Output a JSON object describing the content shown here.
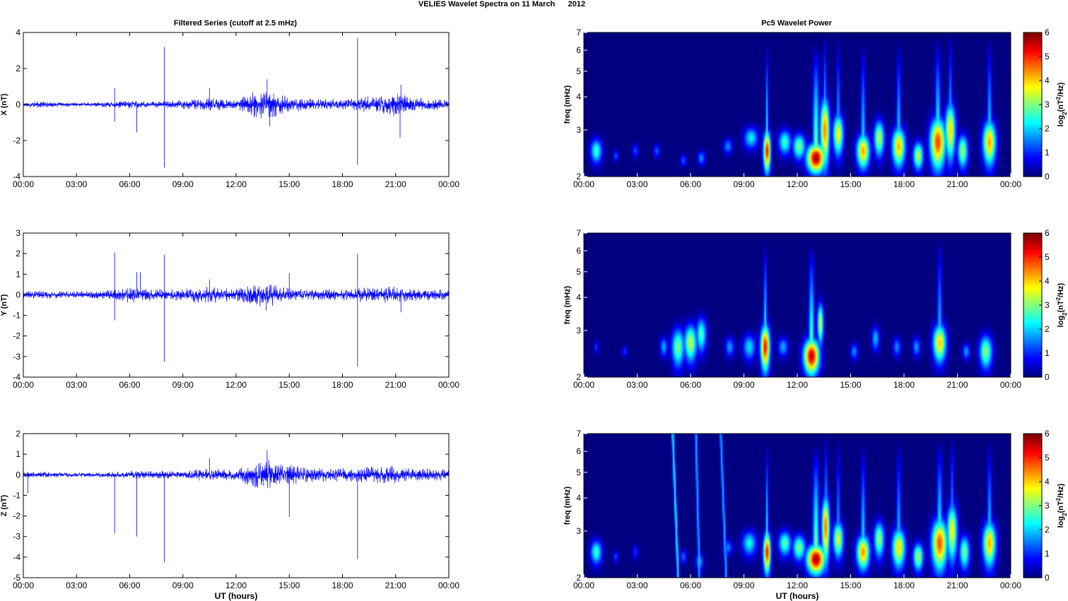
{
  "figure_title": "VELIES Wavelet Spectra on 11 March      2012",
  "left_title": "Filtered Series (cutoff at 2.5 mHz)",
  "right_title": "Pc5 Wavelet Power",
  "x_label": "UT (hours)",
  "colorbar_label": "log2(nT^2/Hz)",
  "colors": {
    "series_line": "#0000ff",
    "axis": "#000000",
    "background": "#00008f",
    "colormap": "jet"
  },
  "chart_data": [
    {
      "type": "line",
      "name": "X component filtered series",
      "title": "Filtered Series (cutoff at 2.5 mHz)",
      "ylabel": "X (nT)",
      "xlabel": "",
      "xlim": [
        0,
        24
      ],
      "ylim": [
        -4,
        4
      ],
      "x_tick_labels": [
        "00:00",
        "03:00",
        "06:00",
        "09:00",
        "12:00",
        "15:00",
        "18:00",
        "21:00",
        "00:00"
      ],
      "y_ticks": [
        -4,
        -2,
        0,
        2,
        4
      ],
      "envelope_hours": [
        0,
        1,
        2,
        3,
        4,
        5,
        6,
        7,
        8,
        9,
        10,
        11,
        12,
        13,
        14,
        15,
        16,
        17,
        18,
        19,
        20,
        21,
        22,
        23,
        24
      ],
      "envelope_amplitude": [
        0.15,
        0.2,
        0.12,
        0.12,
        0.12,
        0.18,
        0.25,
        0.2,
        0.2,
        0.25,
        0.35,
        0.4,
        0.25,
        0.8,
        0.9,
        0.45,
        0.35,
        0.35,
        0.3,
        0.4,
        0.6,
        0.8,
        0.4,
        0.35,
        0.25
      ],
      "spikes": [
        {
          "x": 5.15,
          "y": 0.9
        },
        {
          "x": 5.15,
          "y": -0.95
        },
        {
          "x": 6.4,
          "y": -1.55
        },
        {
          "x": 7.95,
          "y": 3.2
        },
        {
          "x": 7.95,
          "y": -3.5
        },
        {
          "x": 10.5,
          "y": 0.9
        },
        {
          "x": 13.75,
          "y": 1.4
        },
        {
          "x": 13.9,
          "y": -1.2
        },
        {
          "x": 18.85,
          "y": 3.7
        },
        {
          "x": 18.85,
          "y": -3.35
        },
        {
          "x": 21.3,
          "y": 1.1
        },
        {
          "x": 21.25,
          "y": -1.85
        }
      ]
    },
    {
      "type": "line",
      "name": "Y component filtered series",
      "ylabel": "Y (nT)",
      "xlabel": "",
      "xlim": [
        0,
        24
      ],
      "ylim": [
        -4,
        3
      ],
      "x_tick_labels": [
        "00:00",
        "03:00",
        "06:00",
        "09:00",
        "12:00",
        "15:00",
        "18:00",
        "21:00",
        "00:00"
      ],
      "y_ticks": [
        -4,
        -3,
        -2,
        -1,
        0,
        1,
        2,
        3
      ],
      "envelope_hours": [
        0,
        1,
        2,
        3,
        4,
        5,
        6,
        7,
        8,
        9,
        10,
        11,
        12,
        13,
        14,
        15,
        16,
        17,
        18,
        19,
        20,
        21,
        22,
        23,
        24
      ],
      "envelope_amplitude": [
        0.2,
        0.2,
        0.18,
        0.18,
        0.2,
        0.3,
        0.4,
        0.35,
        0.3,
        0.3,
        0.45,
        0.4,
        0.3,
        0.6,
        0.55,
        0.35,
        0.3,
        0.3,
        0.3,
        0.35,
        0.45,
        0.45,
        0.3,
        0.3,
        0.25
      ],
      "spikes": [
        {
          "x": 5.15,
          "y": 2.05
        },
        {
          "x": 5.15,
          "y": -1.25
        },
        {
          "x": 6.4,
          "y": 1.1
        },
        {
          "x": 6.6,
          "y": 1.1
        },
        {
          "x": 7.95,
          "y": 1.95
        },
        {
          "x": 7.95,
          "y": -3.25
        },
        {
          "x": 10.5,
          "y": 0.75
        },
        {
          "x": 13.7,
          "y": -0.75
        },
        {
          "x": 15.0,
          "y": 1.05
        },
        {
          "x": 18.85,
          "y": 2.0
        },
        {
          "x": 18.85,
          "y": -3.5
        },
        {
          "x": 21.3,
          "y": -0.85
        }
      ]
    },
    {
      "type": "line",
      "name": "Z component filtered series",
      "ylabel": "Z (nT)",
      "xlabel": "UT (hours)",
      "xlim": [
        0,
        24
      ],
      "ylim": [
        -5,
        2
      ],
      "x_tick_labels": [
        "00:00",
        "03:00",
        "06:00",
        "09:00",
        "12:00",
        "15:00",
        "18:00",
        "21:00",
        "00:00"
      ],
      "y_ticks": [
        -5,
        -4,
        -3,
        -2,
        -1,
        0,
        1,
        2
      ],
      "envelope_hours": [
        0,
        1,
        2,
        3,
        4,
        5,
        6,
        7,
        8,
        9,
        10,
        11,
        12,
        13,
        14,
        15,
        16,
        17,
        18,
        19,
        20,
        21,
        22,
        23,
        24
      ],
      "envelope_amplitude": [
        0.15,
        0.15,
        0.12,
        0.12,
        0.12,
        0.15,
        0.2,
        0.2,
        0.2,
        0.2,
        0.3,
        0.3,
        0.25,
        0.7,
        0.75,
        0.5,
        0.4,
        0.35,
        0.35,
        0.4,
        0.45,
        0.45,
        0.35,
        0.35,
        0.25
      ],
      "spikes": [
        {
          "x": 0.25,
          "y": -0.9
        },
        {
          "x": 5.15,
          "y": -2.85
        },
        {
          "x": 6.4,
          "y": -3.0
        },
        {
          "x": 7.95,
          "y": -4.25
        },
        {
          "x": 10.5,
          "y": 0.8
        },
        {
          "x": 13.75,
          "y": 1.2
        },
        {
          "x": 15.0,
          "y": -2.05
        },
        {
          "x": 18.85,
          "y": -4.1
        }
      ]
    },
    {
      "type": "heatmap",
      "name": "X wavelet power",
      "title": "Pc5 Wavelet Power",
      "ylabel": "freq (mHz)",
      "xlabel": "",
      "xlim": [
        0,
        24
      ],
      "ylim": [
        2,
        7
      ],
      "y_scale": "log",
      "y_ticks": [
        2,
        3,
        4,
        5,
        6,
        7
      ],
      "x_tick_labels": [
        "00:00",
        "03:00",
        "06:00",
        "09:00",
        "12:00",
        "15:00",
        "18:00",
        "21:00",
        "00:00"
      ],
      "colorbar": {
        "ticks": [
          0,
          1,
          2,
          3,
          4,
          5,
          6
        ],
        "label": "log2(nT^2/Hz)",
        "cmap": "jet"
      },
      "blobs": [
        {
          "t": 0.7,
          "f": 2.5,
          "dt": 0.22,
          "df": 0.18,
          "p": 2.6
        },
        {
          "t": 1.8,
          "f": 2.4,
          "dt": 0.1,
          "df": 0.08,
          "p": 1.3
        },
        {
          "t": 2.9,
          "f": 2.5,
          "dt": 0.12,
          "df": 0.1,
          "p": 1.2
        },
        {
          "t": 4.1,
          "f": 2.5,
          "dt": 0.12,
          "df": 0.1,
          "p": 1.3
        },
        {
          "t": 5.6,
          "f": 2.3,
          "dt": 0.12,
          "df": 0.08,
          "p": 1.3
        },
        {
          "t": 6.6,
          "f": 2.35,
          "dt": 0.15,
          "df": 0.1,
          "p": 1.6
        },
        {
          "t": 8.1,
          "f": 2.6,
          "dt": 0.18,
          "df": 0.12,
          "p": 1.6
        },
        {
          "t": 9.4,
          "f": 2.8,
          "dt": 0.28,
          "df": 0.18,
          "p": 2.2
        },
        {
          "t": 10.3,
          "f": 2.5,
          "dt": 0.14,
          "df": 0.3,
          "p": 5.2
        },
        {
          "t": 11.3,
          "f": 2.7,
          "dt": 0.25,
          "df": 0.2,
          "p": 2.6
        },
        {
          "t": 12.1,
          "f": 2.6,
          "dt": 0.25,
          "df": 0.2,
          "p": 3.0
        },
        {
          "t": 13.05,
          "f": 2.35,
          "dt": 0.35,
          "df": 0.2,
          "p": 5.8
        },
        {
          "t": 13.55,
          "f": 3.0,
          "dt": 0.18,
          "df": 0.6,
          "p": 4.5
        },
        {
          "t": 14.3,
          "f": 2.9,
          "dt": 0.2,
          "df": 0.35,
          "p": 3.8
        },
        {
          "t": 15.7,
          "f": 2.5,
          "dt": 0.25,
          "df": 0.25,
          "p": 4.3
        },
        {
          "t": 16.6,
          "f": 2.8,
          "dt": 0.2,
          "df": 0.3,
          "p": 3.4
        },
        {
          "t": 17.7,
          "f": 2.6,
          "dt": 0.25,
          "df": 0.3,
          "p": 4.2
        },
        {
          "t": 18.8,
          "f": 2.4,
          "dt": 0.2,
          "df": 0.2,
          "p": 3.4
        },
        {
          "t": 19.9,
          "f": 2.7,
          "dt": 0.3,
          "df": 0.4,
          "p": 4.9
        },
        {
          "t": 20.6,
          "f": 3.0,
          "dt": 0.2,
          "df": 0.5,
          "p": 4.0
        },
        {
          "t": 21.3,
          "f": 2.5,
          "dt": 0.2,
          "df": 0.25,
          "p": 3.2
        },
        {
          "t": 22.8,
          "f": 2.7,
          "dt": 0.25,
          "df": 0.35,
          "p": 4.3
        }
      ]
    },
    {
      "type": "heatmap",
      "name": "Y wavelet power",
      "ylabel": "freq (mHz)",
      "xlabel": "",
      "xlim": [
        0,
        24
      ],
      "ylim": [
        2,
        7
      ],
      "y_scale": "log",
      "y_ticks": [
        2,
        3,
        4,
        5,
        6,
        7
      ],
      "x_tick_labels": [
        "00:00",
        "03:00",
        "06:00",
        "09:00",
        "12:00",
        "15:00",
        "18:00",
        "21:00",
        "00:00"
      ],
      "colorbar": {
        "ticks": [
          0,
          1,
          2,
          3,
          4,
          5,
          6
        ],
        "label": "log2(nT^2/Hz)",
        "cmap": "jet"
      },
      "blobs": [
        {
          "t": 0.7,
          "f": 2.6,
          "dt": 0.08,
          "df": 0.1,
          "p": 1.1
        },
        {
          "t": 2.3,
          "f": 2.5,
          "dt": 0.1,
          "df": 0.08,
          "p": 1.1
        },
        {
          "t": 4.5,
          "f": 2.6,
          "dt": 0.15,
          "df": 0.15,
          "p": 1.8
        },
        {
          "t": 5.3,
          "f": 2.6,
          "dt": 0.25,
          "df": 0.3,
          "p": 3.0
        },
        {
          "t": 6.0,
          "f": 2.7,
          "dt": 0.25,
          "df": 0.3,
          "p": 3.4
        },
        {
          "t": 6.6,
          "f": 2.9,
          "dt": 0.2,
          "df": 0.3,
          "p": 2.7
        },
        {
          "t": 8.2,
          "f": 2.6,
          "dt": 0.18,
          "df": 0.15,
          "p": 1.7
        },
        {
          "t": 9.3,
          "f": 2.6,
          "dt": 0.25,
          "df": 0.2,
          "p": 2.1
        },
        {
          "t": 10.2,
          "f": 2.6,
          "dt": 0.18,
          "df": 0.35,
          "p": 5.2
        },
        {
          "t": 11.2,
          "f": 2.6,
          "dt": 0.2,
          "df": 0.15,
          "p": 1.8
        },
        {
          "t": 12.8,
          "f": 2.4,
          "dt": 0.3,
          "df": 0.25,
          "p": 5.6
        },
        {
          "t": 13.3,
          "f": 3.2,
          "dt": 0.12,
          "df": 0.4,
          "p": 3.4
        },
        {
          "t": 15.2,
          "f": 2.5,
          "dt": 0.15,
          "df": 0.12,
          "p": 1.6
        },
        {
          "t": 16.4,
          "f": 2.8,
          "dt": 0.15,
          "df": 0.2,
          "p": 1.9
        },
        {
          "t": 17.6,
          "f": 2.6,
          "dt": 0.15,
          "df": 0.15,
          "p": 1.6
        },
        {
          "t": 18.7,
          "f": 2.6,
          "dt": 0.15,
          "df": 0.15,
          "p": 1.7
        },
        {
          "t": 20.0,
          "f": 2.7,
          "dt": 0.25,
          "df": 0.3,
          "p": 4.1
        },
        {
          "t": 21.5,
          "f": 2.5,
          "dt": 0.15,
          "df": 0.12,
          "p": 1.7
        },
        {
          "t": 22.6,
          "f": 2.5,
          "dt": 0.25,
          "df": 0.25,
          "p": 3.1
        }
      ]
    },
    {
      "type": "heatmap",
      "name": "Z wavelet power",
      "ylabel": "freq (mHz)",
      "xlabel": "UT (hours)",
      "xlim": [
        0,
        24
      ],
      "ylim": [
        2,
        7
      ],
      "y_scale": "log",
      "y_ticks": [
        2,
        3,
        4,
        5,
        6,
        7
      ],
      "x_tick_labels": [
        "00:00",
        "03:00",
        "06:00",
        "09:00",
        "12:00",
        "15:00",
        "18:00",
        "21:00",
        "00:00"
      ],
      "colorbar": {
        "ticks": [
          0,
          1,
          2,
          3,
          4,
          5,
          6
        ],
        "label": "log2(nT^2/Hz)",
        "cmap": "jet"
      },
      "blobs": [
        {
          "t": 0.7,
          "f": 2.5,
          "dt": 0.22,
          "df": 0.18,
          "p": 2.6
        },
        {
          "t": 1.8,
          "f": 2.4,
          "dt": 0.1,
          "df": 0.08,
          "p": 1.2
        },
        {
          "t": 2.9,
          "f": 2.5,
          "dt": 0.12,
          "df": 0.1,
          "p": 1.1
        },
        {
          "t": 5.6,
          "f": 2.4,
          "dt": 0.12,
          "df": 0.1,
          "p": 1.4
        },
        {
          "t": 6.5,
          "f": 2.3,
          "dt": 0.15,
          "df": 0.12,
          "p": 1.8
        },
        {
          "t": 8.1,
          "f": 2.6,
          "dt": 0.18,
          "df": 0.12,
          "p": 1.5
        },
        {
          "t": 9.3,
          "f": 2.7,
          "dt": 0.28,
          "df": 0.2,
          "p": 2.3
        },
        {
          "t": 10.3,
          "f": 2.5,
          "dt": 0.14,
          "df": 0.3,
          "p": 5.2
        },
        {
          "t": 11.3,
          "f": 2.7,
          "dt": 0.25,
          "df": 0.2,
          "p": 2.8
        },
        {
          "t": 12.1,
          "f": 2.6,
          "dt": 0.25,
          "df": 0.2,
          "p": 3.0
        },
        {
          "t": 13.05,
          "f": 2.35,
          "dt": 0.35,
          "df": 0.2,
          "p": 5.8
        },
        {
          "t": 13.6,
          "f": 3.1,
          "dt": 0.15,
          "df": 0.6,
          "p": 4.6
        },
        {
          "t": 14.3,
          "f": 2.8,
          "dt": 0.2,
          "df": 0.3,
          "p": 3.6
        },
        {
          "t": 15.7,
          "f": 2.5,
          "dt": 0.25,
          "df": 0.25,
          "p": 4.4
        },
        {
          "t": 16.6,
          "f": 2.8,
          "dt": 0.2,
          "df": 0.3,
          "p": 3.2
        },
        {
          "t": 17.7,
          "f": 2.6,
          "dt": 0.25,
          "df": 0.3,
          "p": 4.0
        },
        {
          "t": 18.8,
          "f": 2.4,
          "dt": 0.2,
          "df": 0.2,
          "p": 3.3
        },
        {
          "t": 20.0,
          "f": 2.7,
          "dt": 0.3,
          "df": 0.4,
          "p": 4.8
        },
        {
          "t": 20.7,
          "f": 3.0,
          "dt": 0.2,
          "df": 0.5,
          "p": 3.8
        },
        {
          "t": 21.4,
          "f": 2.5,
          "dt": 0.2,
          "df": 0.25,
          "p": 3.0
        },
        {
          "t": 22.8,
          "f": 2.7,
          "dt": 0.25,
          "df": 0.35,
          "p": 4.2
        }
      ],
      "streaks": [
        {
          "t0": 5.0,
          "t1": 5.3,
          "p": 2.5
        },
        {
          "t0": 6.3,
          "t1": 6.5,
          "p": 2.0
        },
        {
          "t0": 7.7,
          "t1": 8.0,
          "p": 2.0
        }
      ]
    }
  ]
}
